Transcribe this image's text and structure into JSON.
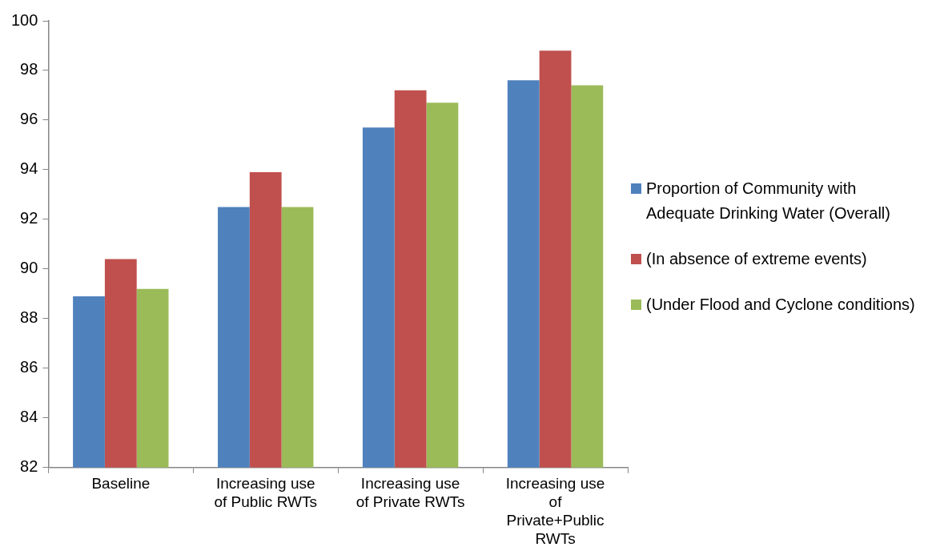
{
  "chart_data": {
    "type": "bar",
    "categories": [
      "Baseline",
      "Increasing use of Public RWTs",
      "Increasing use of Private RWTs",
      "Increasing use of Private+Public RWTs"
    ],
    "series": [
      {
        "name": "Proportion of Community with Adequate Drinking Water (Overall)",
        "color": "#4f81bd",
        "values": [
          88.9,
          92.5,
          95.7,
          97.6
        ]
      },
      {
        "name": "(In absence of extreme events)",
        "color": "#c0504d",
        "values": [
          90.4,
          93.9,
          97.2,
          98.8
        ]
      },
      {
        "name": "(Under Flood and Cyclone conditions)",
        "color": "#9bbb59",
        "values": [
          89.2,
          92.5,
          96.7,
          97.4
        ]
      }
    ],
    "ylim": [
      82,
      100
    ],
    "yticks": [
      82,
      84,
      86,
      88,
      90,
      92,
      94,
      96,
      98,
      100
    ],
    "grid": false,
    "legend": "right"
  }
}
